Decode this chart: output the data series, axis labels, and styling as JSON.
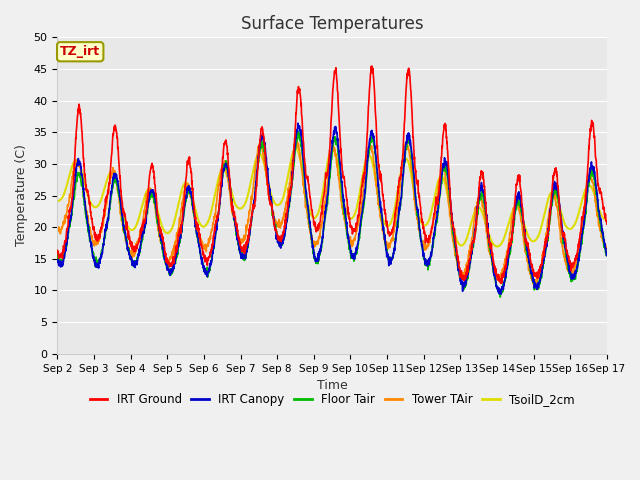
{
  "title": "Surface Temperatures",
  "xlabel": "Time",
  "ylabel": "Temperature (C)",
  "ylim": [
    0,
    50
  ],
  "yticks": [
    0,
    5,
    10,
    15,
    20,
    25,
    30,
    35,
    40,
    45,
    50
  ],
  "fig_bg_color": "#f0f0f0",
  "plot_bg_color": "#e8e8e8",
  "series": {
    "IRT Ground": {
      "color": "#ff0000",
      "lw": 1.2
    },
    "IRT Canopy": {
      "color": "#0000cc",
      "lw": 1.2
    },
    "Floor Tair": {
      "color": "#00bb00",
      "lw": 1.2
    },
    "Tower TAir": {
      "color": "#ff8800",
      "lw": 1.2
    },
    "TsoilD_2cm": {
      "color": "#dddd00",
      "lw": 1.5
    }
  },
  "annotation_text": "TZ_irt",
  "annotation_color": "#cc0000",
  "annotation_bg": "#ffffcc",
  "annotation_border": "#999900",
  "xtick_labels": [
    "Sep 2",
    "Sep 3",
    "Sep 4",
    "Sep 5",
    "Sep 6",
    "Sep 7",
    "Sep 8",
    "Sep 9",
    "Sep 10",
    "Sep 11",
    "Sep 12",
    "Sep 13",
    "Sep 14",
    "Sep 15",
    "Sep 16",
    "Sep 17"
  ]
}
